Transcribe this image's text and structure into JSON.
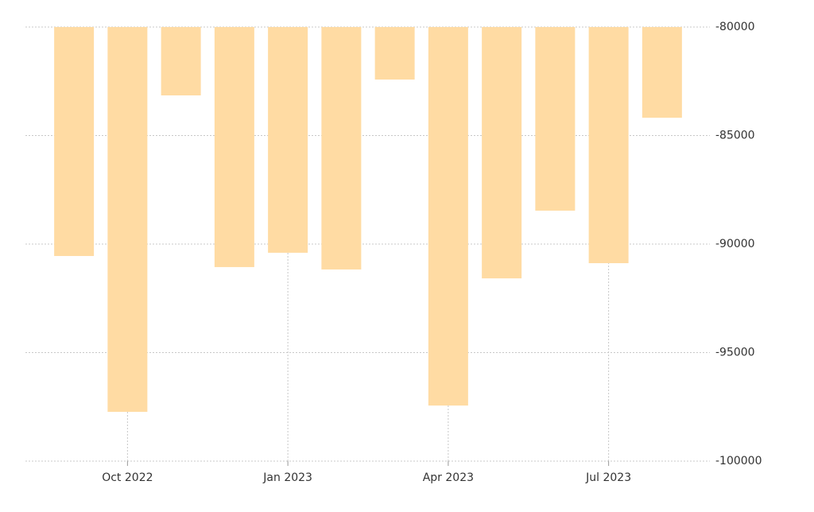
{
  "chart_data": {
    "type": "bar",
    "categories": [
      null,
      "Oct 2022",
      null,
      null,
      "Jan 2023",
      null,
      null,
      "Apr 2023",
      null,
      null,
      "Jul 2023",
      null
    ],
    "values": [
      -90550,
      -97730,
      -83150,
      -91060,
      -90400,
      -91170,
      -82420,
      -97440,
      -91580,
      -88460,
      -90880,
      -84180
    ],
    "color": "#ffdba3",
    "ylim": [
      -100000,
      -80000
    ],
    "yticks": [
      -80000,
      -85000,
      -90000,
      -95000,
      -100000
    ],
    "grid": true
  }
}
